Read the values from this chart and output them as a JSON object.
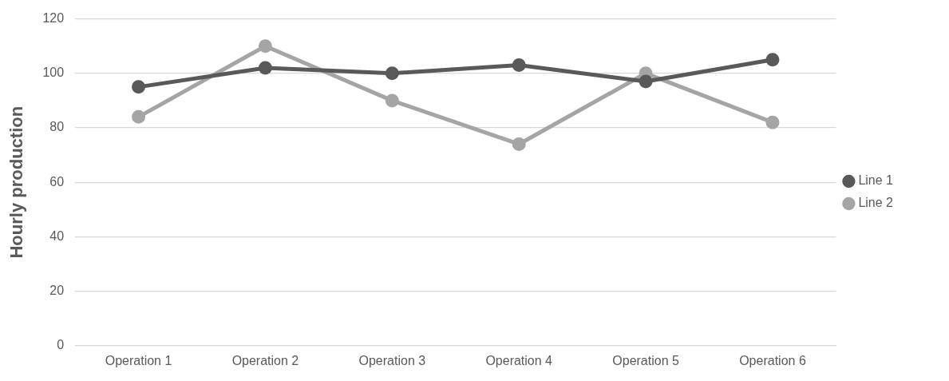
{
  "chart_data": {
    "type": "line",
    "ylabel": "Hourly production",
    "categories": [
      "Operation 1",
      "Operation 2",
      "Operation 3",
      "Operation 4",
      "Operation 5",
      "Operation 6"
    ],
    "series": [
      {
        "name": "Line 1",
        "color": "#595959",
        "values": [
          95,
          102,
          100,
          103,
          97,
          105
        ]
      },
      {
        "name": "Line 2",
        "color": "#a5a5a5",
        "values": [
          84,
          110,
          90,
          74,
          100,
          82
        ]
      }
    ],
    "ylim": [
      0,
      120
    ],
    "yticks": [
      0,
      20,
      40,
      60,
      80,
      100,
      120
    ],
    "grid": "y",
    "legend": "right",
    "marker": "circle",
    "line_style": "solid"
  }
}
